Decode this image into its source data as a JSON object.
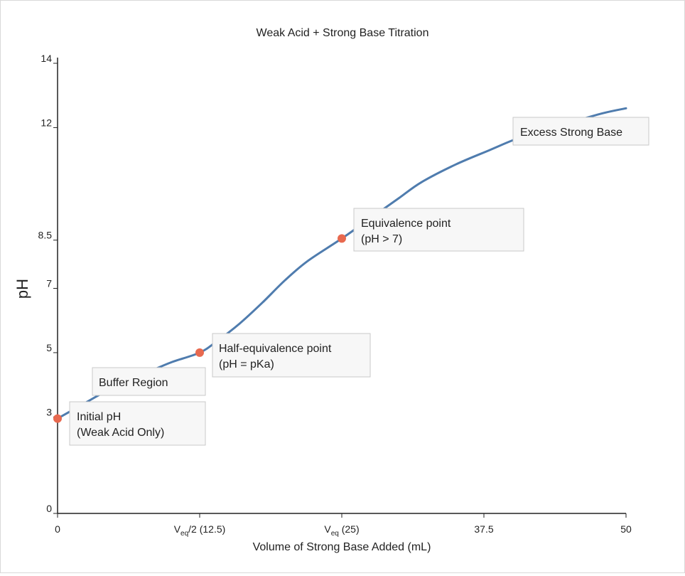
{
  "chart_data": {
    "type": "line",
    "title": "Weak Acid + Strong Base Titration",
    "xlabel": "Volume of Strong Base Added (mL)",
    "ylabel": "pH",
    "xlim": [
      0,
      50
    ],
    "ylim": [
      0,
      14
    ],
    "x_ticks": [
      {
        "value": 0,
        "label": "0"
      },
      {
        "value": 12.5,
        "label": "V",
        "sub": "eq",
        "rest": "/2 (12.5)"
      },
      {
        "value": 25,
        "label": "V",
        "sub": "eq",
        "rest": " (25)"
      },
      {
        "value": 37.5,
        "label": "37.5"
      },
      {
        "value": 50,
        "label": "50"
      }
    ],
    "y_ticks": [
      0,
      3,
      5,
      7,
      8.5,
      12,
      14
    ],
    "grid": false,
    "series": [
      {
        "color": "#4f7cae",
        "x": [
          0,
          2,
          4,
          6,
          8,
          10,
          12.5,
          14,
          16,
          18,
          20,
          22,
          25,
          28,
          30,
          32,
          35,
          38,
          40,
          42,
          45,
          48,
          50
        ],
        "y": [
          2.95,
          3.35,
          3.75,
          4.1,
          4.4,
          4.7,
          5.0,
          5.35,
          5.9,
          6.55,
          7.25,
          7.85,
          8.55,
          9.3,
          9.8,
          10.3,
          10.85,
          11.3,
          11.6,
          11.85,
          12.15,
          12.45,
          12.6
        ]
      }
    ],
    "points": [
      {
        "x": 0,
        "y": 2.95,
        "color": "#e8694f"
      },
      {
        "x": 12.5,
        "y": 5.0,
        "color": "#e8694f"
      },
      {
        "x": 25,
        "y": 8.55,
        "color": "#e8694f"
      }
    ],
    "annotations": [
      {
        "lines": [
          "Initial pH",
          "(Weak Acid Only)"
        ]
      },
      {
        "lines": [
          "Buffer Region"
        ]
      },
      {
        "lines": [
          "Half-equivalence point",
          "(pH = pKa)"
        ]
      },
      {
        "lines": [
          "Equivalence point",
          "(pH > 7)"
        ]
      },
      {
        "lines": [
          "Excess Strong Base"
        ]
      }
    ]
  }
}
